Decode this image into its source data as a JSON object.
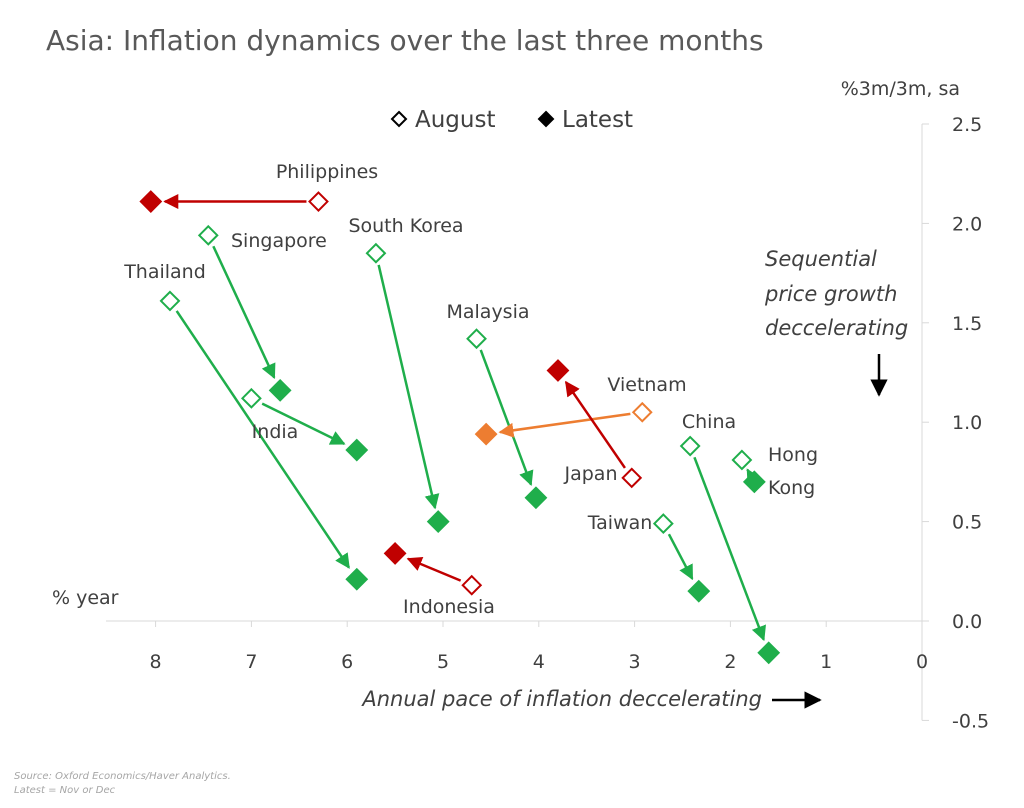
{
  "chart_data": {
    "type": "scatter",
    "title": "Asia: Inflation dynamics over the last three months",
    "xlabel": "% year",
    "ylabel": "%3m/3m, sa",
    "xlim": [
      8.5,
      0
    ],
    "ylim": [
      -0.5,
      2.5
    ],
    "x_ticks": [
      "8",
      "7",
      "6",
      "5",
      "4",
      "3",
      "2",
      "1",
      "0"
    ],
    "x_tick_values": [
      8,
      7,
      6,
      5,
      4,
      3,
      2,
      1,
      0
    ],
    "y_ticks": [
      "2.5",
      "2.0",
      "1.5",
      "1.0",
      "0.5",
      "0.0",
      "-0.5"
    ],
    "y_tick_values": [
      2.5,
      2.0,
      1.5,
      1.0,
      0.5,
      0.0,
      -0.5
    ],
    "grid": false,
    "legend": {
      "placement": "top",
      "entries": [
        {
          "label": "August",
          "style": "hollow-diamond"
        },
        {
          "label": "Latest",
          "style": "filled-diamond"
        }
      ]
    },
    "colors": {
      "decelerating": "#1fae4b",
      "accelerating": "#c00000",
      "mixed": "#ed7d31"
    },
    "series": [
      {
        "country": "Philippines",
        "color": "#c00000",
        "august": [
          6.3,
          2.11
        ],
        "latest": [
          8.05,
          2.11
        ]
      },
      {
        "country": "Singapore",
        "color": "#1fae4b",
        "august": [
          7.45,
          1.94
        ],
        "latest": [
          6.7,
          1.16
        ]
      },
      {
        "country": "South Korea",
        "color": "#1fae4b",
        "august": [
          5.7,
          1.85
        ],
        "latest": [
          5.05,
          0.5
        ]
      },
      {
        "country": "Thailand",
        "color": "#1fae4b",
        "august": [
          7.85,
          1.61
        ],
        "latest": [
          5.9,
          0.21
        ]
      },
      {
        "country": "Malaysia",
        "color": "#1fae4b",
        "august": [
          4.65,
          1.42
        ],
        "latest": [
          4.03,
          0.62
        ]
      },
      {
        "country": "India",
        "color": "#1fae4b",
        "august": [
          7.0,
          1.12
        ],
        "latest": [
          5.9,
          0.86
        ]
      },
      {
        "country": "Vietnam",
        "color": "#ed7d31",
        "august": [
          2.92,
          1.05
        ],
        "latest": [
          4.55,
          0.94
        ]
      },
      {
        "country": "Japan",
        "color": "#c00000",
        "august": [
          3.03,
          0.72
        ],
        "latest": [
          3.8,
          1.26
        ]
      },
      {
        "country": "China",
        "color": "#1fae4b",
        "august": [
          2.42,
          0.88
        ],
        "latest": [
          1.6,
          -0.16
        ]
      },
      {
        "country": "Hong Kong",
        "color": "#1fae4b",
        "august": [
          1.88,
          0.81
        ],
        "latest": [
          1.75,
          0.7
        ]
      },
      {
        "country": "Taiwan",
        "color": "#1fae4b",
        "august": [
          2.7,
          0.49
        ],
        "latest": [
          2.33,
          0.15
        ]
      },
      {
        "country": "Indonesia",
        "color": "#c00000",
        "august": [
          4.7,
          0.18
        ],
        "latest": [
          5.5,
          0.34
        ]
      }
    ],
    "annotations": {
      "y_direction": [
        "Sequential",
        "price growth",
        "deccelerating"
      ],
      "x_direction": "Annual pace of inflation deccelerating"
    },
    "source": [
      "Source: Oxford Economics/Haver Analytics.",
      "Latest = Nov or Dec"
    ]
  }
}
